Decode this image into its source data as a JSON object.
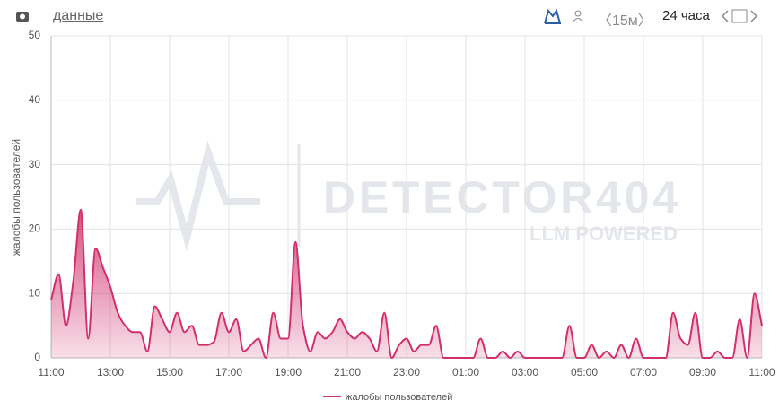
{
  "header": {
    "link": "данные",
    "interval": "〈15м〉",
    "range": "24 часа"
  },
  "watermark": {
    "title": "DETECTOR404",
    "subtitle": "LLM POWERED"
  },
  "chart_data": {
    "type": "area",
    "y_label": "жалобы пользователей",
    "categories": [
      "11:00",
      null,
      null,
      null,
      null,
      null,
      null,
      null,
      "13:00",
      null,
      null,
      null,
      null,
      null,
      null,
      null,
      "15:00",
      null,
      null,
      null,
      null,
      null,
      null,
      null,
      "17:00",
      null,
      null,
      null,
      null,
      null,
      null,
      null,
      "19:00",
      null,
      null,
      null,
      null,
      null,
      null,
      null,
      "21:00",
      null,
      null,
      null,
      null,
      null,
      null,
      null,
      "23:00",
      null,
      null,
      null,
      null,
      null,
      null,
      null,
      "01:00",
      null,
      null,
      null,
      null,
      null,
      null,
      null,
      "03:00",
      null,
      null,
      null,
      null,
      null,
      null,
      null,
      "05:00",
      null,
      null,
      null,
      null,
      null,
      null,
      null,
      "07:00",
      null,
      null,
      null,
      null,
      null,
      null,
      null,
      "09:00",
      null,
      null,
      null,
      null,
      null,
      null,
      null,
      "11:00"
    ],
    "series": [
      {
        "name": "жалобы пользователей",
        "color": "#d12f6b",
        "values": [
          9,
          13,
          5,
          12,
          23,
          3,
          17,
          14,
          11,
          7,
          5,
          4,
          4,
          1,
          8,
          6,
          4,
          7,
          4,
          5,
          2,
          2,
          2.5,
          7,
          4,
          6,
          1,
          2,
          3,
          0,
          7,
          3,
          3,
          18,
          5,
          1,
          4,
          3,
          4,
          6,
          4,
          3,
          4,
          3,
          1,
          7,
          0,
          2,
          3,
          1,
          2,
          2,
          5,
          0,
          0,
          0,
          0,
          0,
          3,
          0,
          0,
          1,
          0,
          1,
          0,
          0,
          0,
          0,
          0,
          0,
          5,
          0,
          0,
          2,
          0,
          1,
          0,
          2,
          0,
          3,
          0,
          0,
          0,
          0,
          7,
          3,
          2,
          7,
          0,
          0,
          1,
          0,
          0,
          6,
          0,
          10,
          5
        ]
      }
    ],
    "ylim": [
      0,
      50
    ],
    "yticks": [
      0,
      10,
      20,
      30,
      40,
      50
    ],
    "grid": true
  }
}
